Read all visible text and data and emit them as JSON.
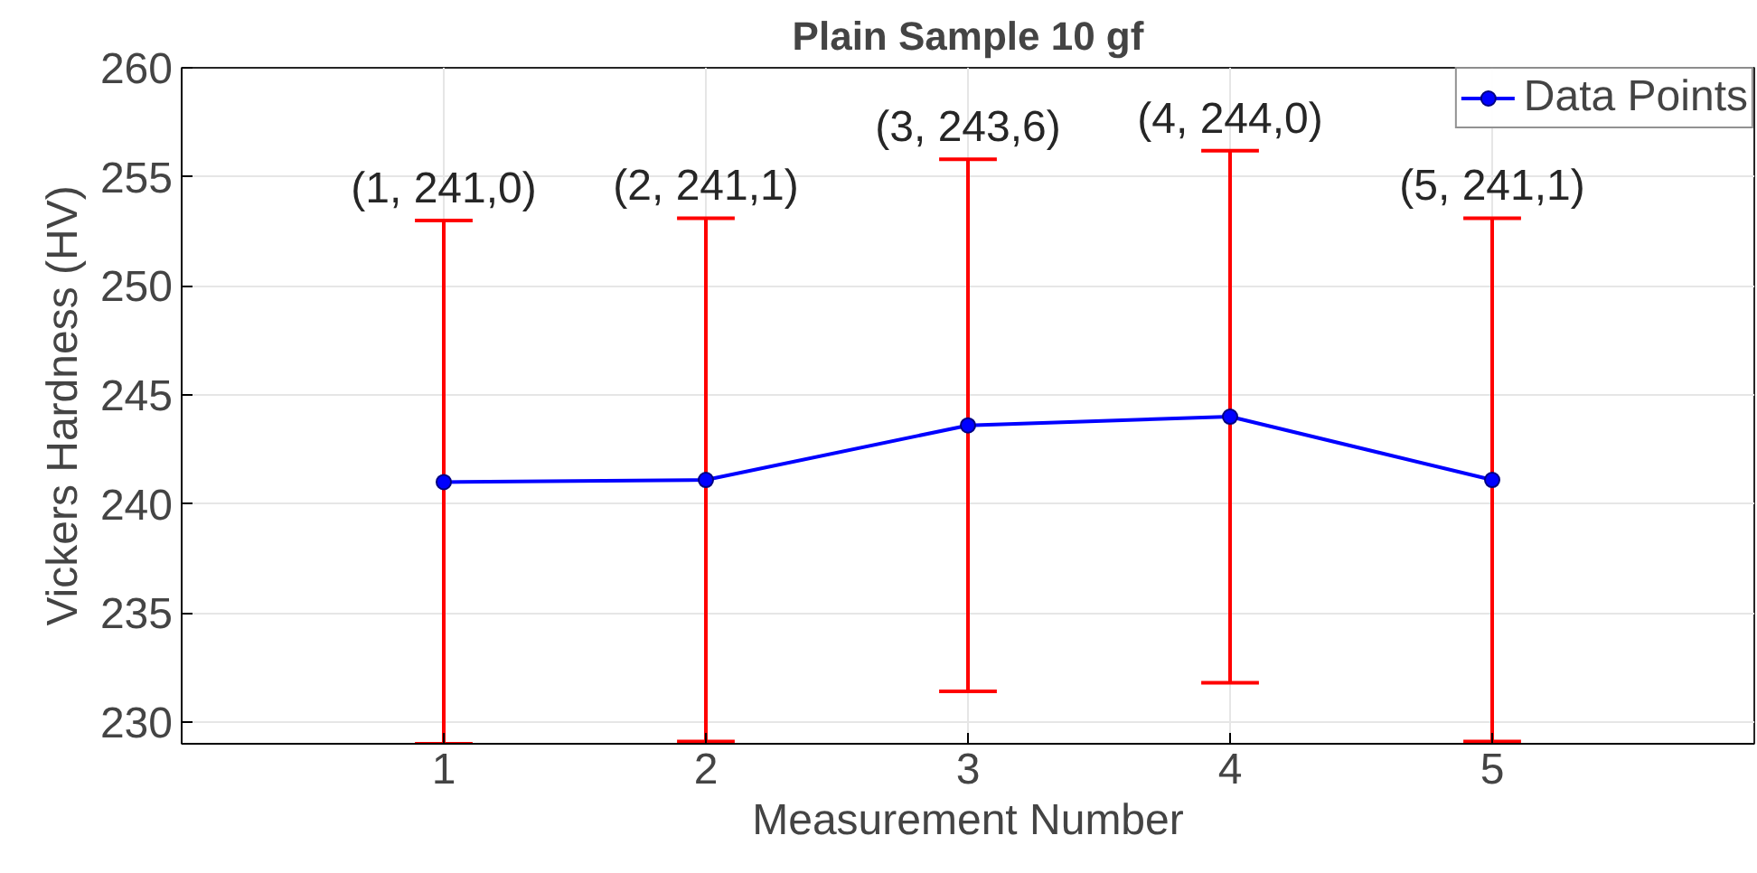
{
  "chart_data": {
    "type": "line",
    "title": "Plain Sample 10 gf",
    "xlabel": "Measurement Number",
    "ylabel": "Vickers Hardness (HV)",
    "x": [
      1,
      2,
      3,
      4,
      5
    ],
    "series": [
      {
        "name": "Data Points",
        "color": "#0000ff",
        "values": [
          241.0,
          241.1,
          243.6,
          244.0,
          241.1
        ],
        "errors": [
          12.0,
          12.0,
          12.2,
          12.2,
          12.0
        ]
      }
    ],
    "annotations": [
      "(1, 241,0)",
      "(2, 241,1)",
      "(3, 243,6)",
      "(4, 244,0)",
      "(5, 241,1)"
    ],
    "xlim": [
      0,
      6
    ],
    "ylim": [
      229,
      260
    ],
    "xticks": [
      1,
      2,
      3,
      4,
      5
    ],
    "yticks": [
      230,
      235,
      240,
      245,
      250,
      255,
      260
    ],
    "grid": true,
    "legend": "top right",
    "marker": "circle",
    "line_style": "solid"
  }
}
